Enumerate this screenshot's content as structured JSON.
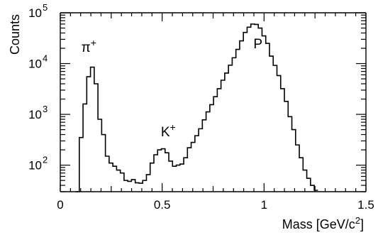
{
  "chart_data": {
    "type": "histogram",
    "xlabel": "Mass [GeV/c",
    "xlabel_sup": "2",
    "xlabel_end": "]",
    "ylabel": "Counts",
    "xlim": [
      0,
      1.5
    ],
    "ylim": [
      30,
      100000
    ],
    "yscale": "log",
    "grid": false,
    "legend": "none",
    "x_ticks": [
      {
        "value": 0,
        "label": "0"
      },
      {
        "value": 0.5,
        "label": "0.5"
      },
      {
        "value": 1,
        "label": "1"
      },
      {
        "value": 1.5,
        "label": "1.5"
      }
    ],
    "y_ticks": [
      {
        "value": 100,
        "base": "10",
        "exp": "2"
      },
      {
        "value": 1000,
        "base": "10",
        "exp": "3"
      },
      {
        "value": 10000,
        "base": "10",
        "exp": "4"
      },
      {
        "value": 100000,
        "base": "10",
        "exp": "5"
      }
    ],
    "bin_edges_start": 0.075,
    "bin_width": 0.0183,
    "counts": [
      30,
      350,
      1600,
      5500,
      8500,
      4000,
      800,
      400,
      150,
      110,
      95,
      80,
      70,
      50,
      48,
      52,
      45,
      44,
      50,
      65,
      110,
      160,
      200,
      210,
      175,
      120,
      95,
      100,
      105,
      140,
      220,
      280,
      380,
      520,
      780,
      1120,
      1550,
      2230,
      3200,
      4700,
      6500,
      9300,
      13000,
      19000,
      28000,
      41000,
      52000,
      60000,
      59000,
      50000,
      35000,
      25000,
      14000,
      9200,
      5800,
      3200,
      1800,
      900,
      500,
      250,
      140,
      80,
      55,
      40,
      32
    ],
    "annotations": [
      {
        "base": "π",
        "sup": "+",
        "x": 0.14,
        "y": 17000
      },
      {
        "base": "K",
        "sup": "+",
        "x": 0.53,
        "y": 370
      },
      {
        "base": "P",
        "sup": "",
        "x": 0.97,
        "y": 20000
      }
    ]
  }
}
